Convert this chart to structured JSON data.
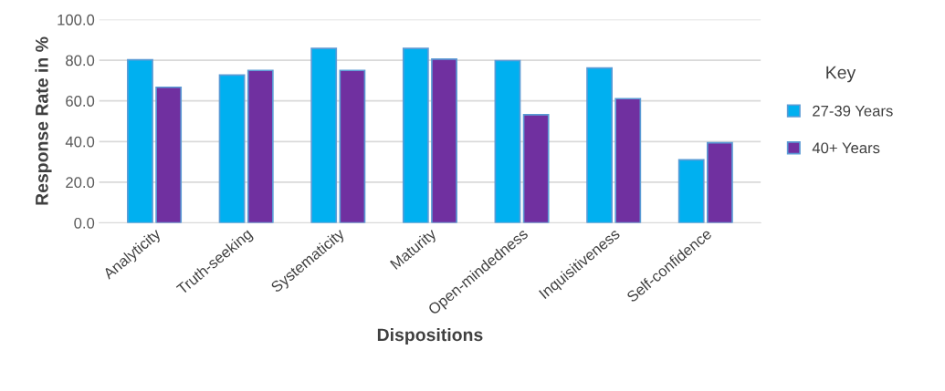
{
  "chart_data": {
    "type": "bar",
    "xlabel": "Dispositions",
    "ylabel": "Response Rate in %",
    "legend_title": "Key",
    "categories": [
      "Analyticity",
      "Truth-seeking",
      "Systematicity",
      "Maturity",
      "Open-mindedness",
      "Inquisitiveness",
      "Self-confidence"
    ],
    "series": [
      {
        "name": "27-39 Years",
        "color": "#00b0f0",
        "values": [
          80.2,
          72.7,
          85.8,
          85.8,
          79.8,
          76.2,
          31.0
        ]
      },
      {
        "name": "40+ Years",
        "color": "#7030a0",
        "values": [
          66.7,
          75.0,
          75.0,
          80.5,
          53.2,
          61.1,
          39.4
        ]
      }
    ],
    "ylim": [
      0,
      100
    ],
    "yticks": [
      {
        "value": 0,
        "label": "0.0"
      },
      {
        "value": 20,
        "label": "20.0"
      },
      {
        "value": 40,
        "label": "40.0"
      },
      {
        "value": 60,
        "label": "60.0"
      },
      {
        "value": 80,
        "label": "80.0"
      },
      {
        "value": 100,
        "label": "100.0"
      }
    ],
    "grid": "y",
    "legend": "right"
  }
}
